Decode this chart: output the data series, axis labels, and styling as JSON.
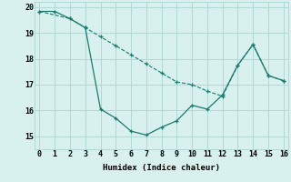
{
  "line1_x": [
    0,
    1,
    2,
    3,
    4,
    5,
    6,
    7,
    8,
    9,
    10,
    11,
    12,
    13,
    14,
    15,
    16
  ],
  "line1_y": [
    19.83,
    19.83,
    19.55,
    19.2,
    16.05,
    15.7,
    15.2,
    15.05,
    15.35,
    15.6,
    16.2,
    16.05,
    16.6,
    17.75,
    18.55,
    17.35,
    17.15
  ],
  "line2_x": [
    0,
    2,
    3,
    4,
    5,
    6,
    7,
    8,
    9,
    10,
    11,
    12,
    13,
    14,
    15,
    16
  ],
  "line2_y": [
    19.83,
    19.55,
    19.2,
    18.85,
    18.5,
    18.15,
    17.8,
    17.45,
    17.1,
    17.0,
    16.75,
    16.55,
    17.75,
    18.55,
    17.35,
    17.15
  ],
  "color": "#1a7a6e",
  "bg_color": "#d8f0ee",
  "grid_color": "#b0d8d4",
  "xlabel": "Humidex (Indice chaleur)",
  "xlim": [
    -0.3,
    16.3
  ],
  "ylim": [
    14.5,
    20.2
  ],
  "yticks": [
    15,
    16,
    17,
    18,
    19,
    20
  ],
  "xticks": [
    0,
    1,
    2,
    3,
    4,
    5,
    6,
    7,
    8,
    9,
    10,
    11,
    12,
    13,
    14,
    15,
    16
  ]
}
